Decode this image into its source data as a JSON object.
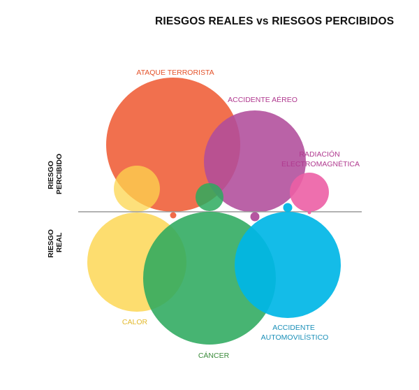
{
  "title": "RIESGOS REALES vs RIESGOS PERCIBIDOS",
  "axis_labels": {
    "perceived": [
      "RIESGO",
      "PERCIBIDO"
    ],
    "real": [
      "RIESGO",
      "REAL"
    ]
  },
  "risks": {
    "terrorism": {
      "label": [
        "ATAQUE TERRORISTA"
      ],
      "color": "#f0643f"
    },
    "air": {
      "label": [
        "ACCIDENTE AÉREO"
      ],
      "color": "#b14c9b"
    },
    "radiation": {
      "label": [
        "RADIACIÓN",
        "ELECTROMAGNÉTICA"
      ],
      "color": "#ec5fa5"
    },
    "heat": {
      "label": [
        "CALOR"
      ],
      "color": "#fcd54f"
    },
    "cancer": {
      "label": [
        "CÁNCER"
      ],
      "color": "#2daa5e"
    },
    "car": {
      "label": [
        "ACCIDENTE",
        "AUTOMOVILÍSTICO"
      ],
      "color": "#00b6e6"
    }
  },
  "label_colors": {
    "terrorism": "#e4532b",
    "air": "#b0398f",
    "radiation": "#b0398f",
    "heat": "#e3b92c",
    "cancer": "#3a8b3a",
    "car": "#1a8fb8"
  },
  "divider_color": "#999999"
}
